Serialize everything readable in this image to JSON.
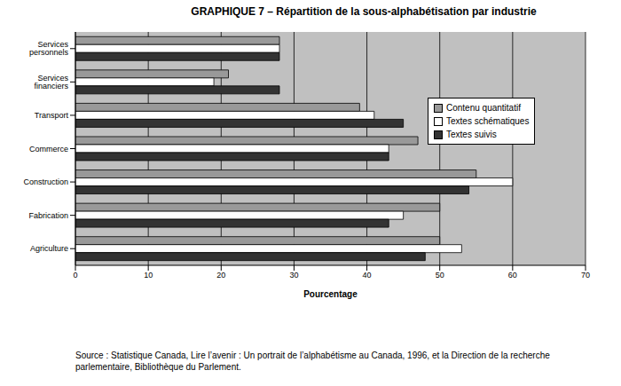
{
  "chart_data": {
    "type": "bar",
    "orientation": "horizontal",
    "title": "GRAPHIQUE 7 – Répartition de la sous-alphabétisation par industrie",
    "x_label": "Pourcentage",
    "source": "Source : Statistique Canada, Lire l’avenir : Un portrait de l’alphabétisme au Canada, 1996, et la Direction de la recherche parlementaire, Bibliothèque du Parlement.",
    "categories": [
      "Services personnels",
      "Services financiers",
      "Transport",
      "Commerce",
      "Construction",
      "Fabrication",
      "Agriculture"
    ],
    "series": [
      {
        "name": "Contenu quantitatif",
        "color": "#999999",
        "values": [
          28,
          21,
          39,
          47,
          55,
          50,
          50
        ]
      },
      {
        "name": "Textes schématiques",
        "color": "#ffffff",
        "values": [
          28,
          19,
          41,
          43,
          60,
          45,
          53
        ]
      },
      {
        "name": "Textes suivis",
        "color": "#333333",
        "values": [
          28,
          28,
          45,
          43,
          54,
          43,
          48
        ]
      }
    ],
    "xlim": [
      0,
      70
    ],
    "xticks": [
      0,
      10,
      20,
      30,
      40,
      50,
      60,
      70
    ],
    "grid": true,
    "legend": "upper right"
  }
}
